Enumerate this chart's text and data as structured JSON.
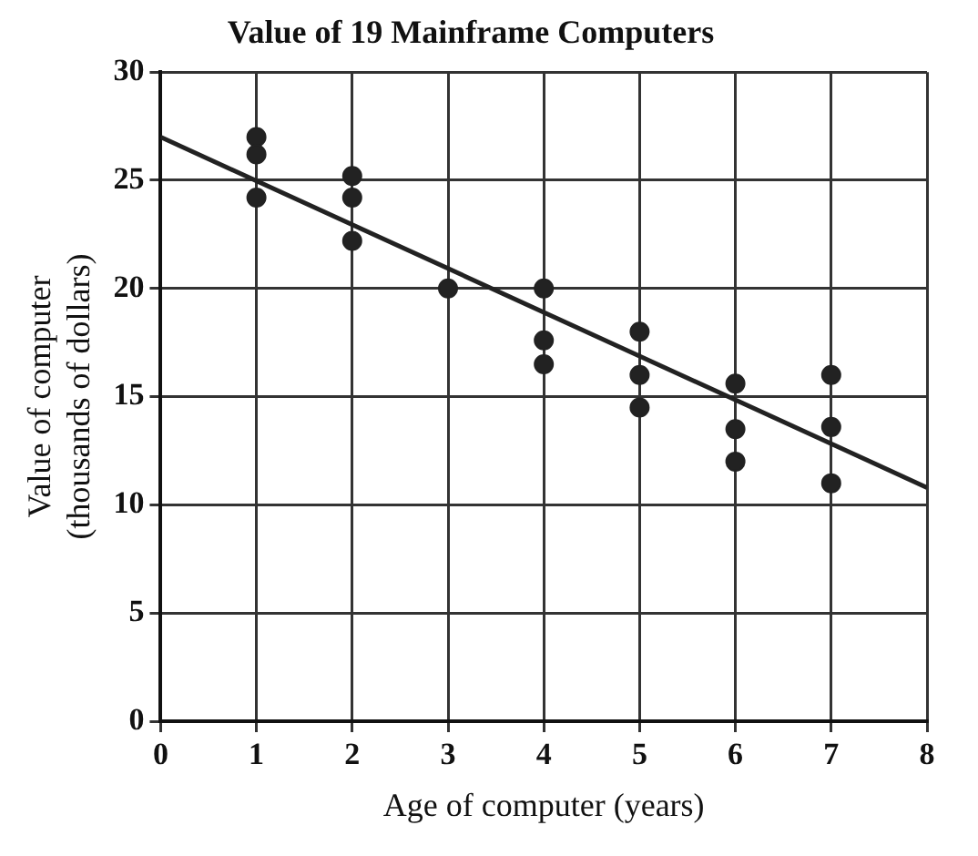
{
  "chart_data": {
    "type": "scatter",
    "title": "Value of 19 Mainframe Computers",
    "xlabel": "Age of computer (years)",
    "ylabel": "Value of computer\n(thousands of dollars)",
    "series": [
      {
        "color": "#222222",
        "marker": "circle",
        "x": [
          1,
          1,
          1,
          2,
          2,
          2,
          3,
          4,
          4,
          4,
          5,
          5,
          5,
          6,
          6,
          6,
          7,
          7,
          7
        ],
        "values": [
          27,
          26.2,
          24.2,
          25.2,
          24.2,
          22.2,
          20,
          20,
          17.6,
          16.5,
          18,
          16,
          14.5,
          15.6,
          13.5,
          12,
          16,
          13.6,
          11
        ]
      },
      {
        "type": "line",
        "marker": "none",
        "color": "#222222",
        "x": [
          0,
          8
        ],
        "values": [
          27,
          10.8
        ]
      }
    ],
    "xlim": [
      0,
      8
    ],
    "xticks": [
      0,
      1,
      2,
      3,
      4,
      5,
      6,
      7,
      8
    ],
    "ylim": [
      0,
      30
    ],
    "yticks": [
      0,
      5,
      10,
      15,
      20,
      25,
      30
    ],
    "grid": true,
    "legend": false
  }
}
